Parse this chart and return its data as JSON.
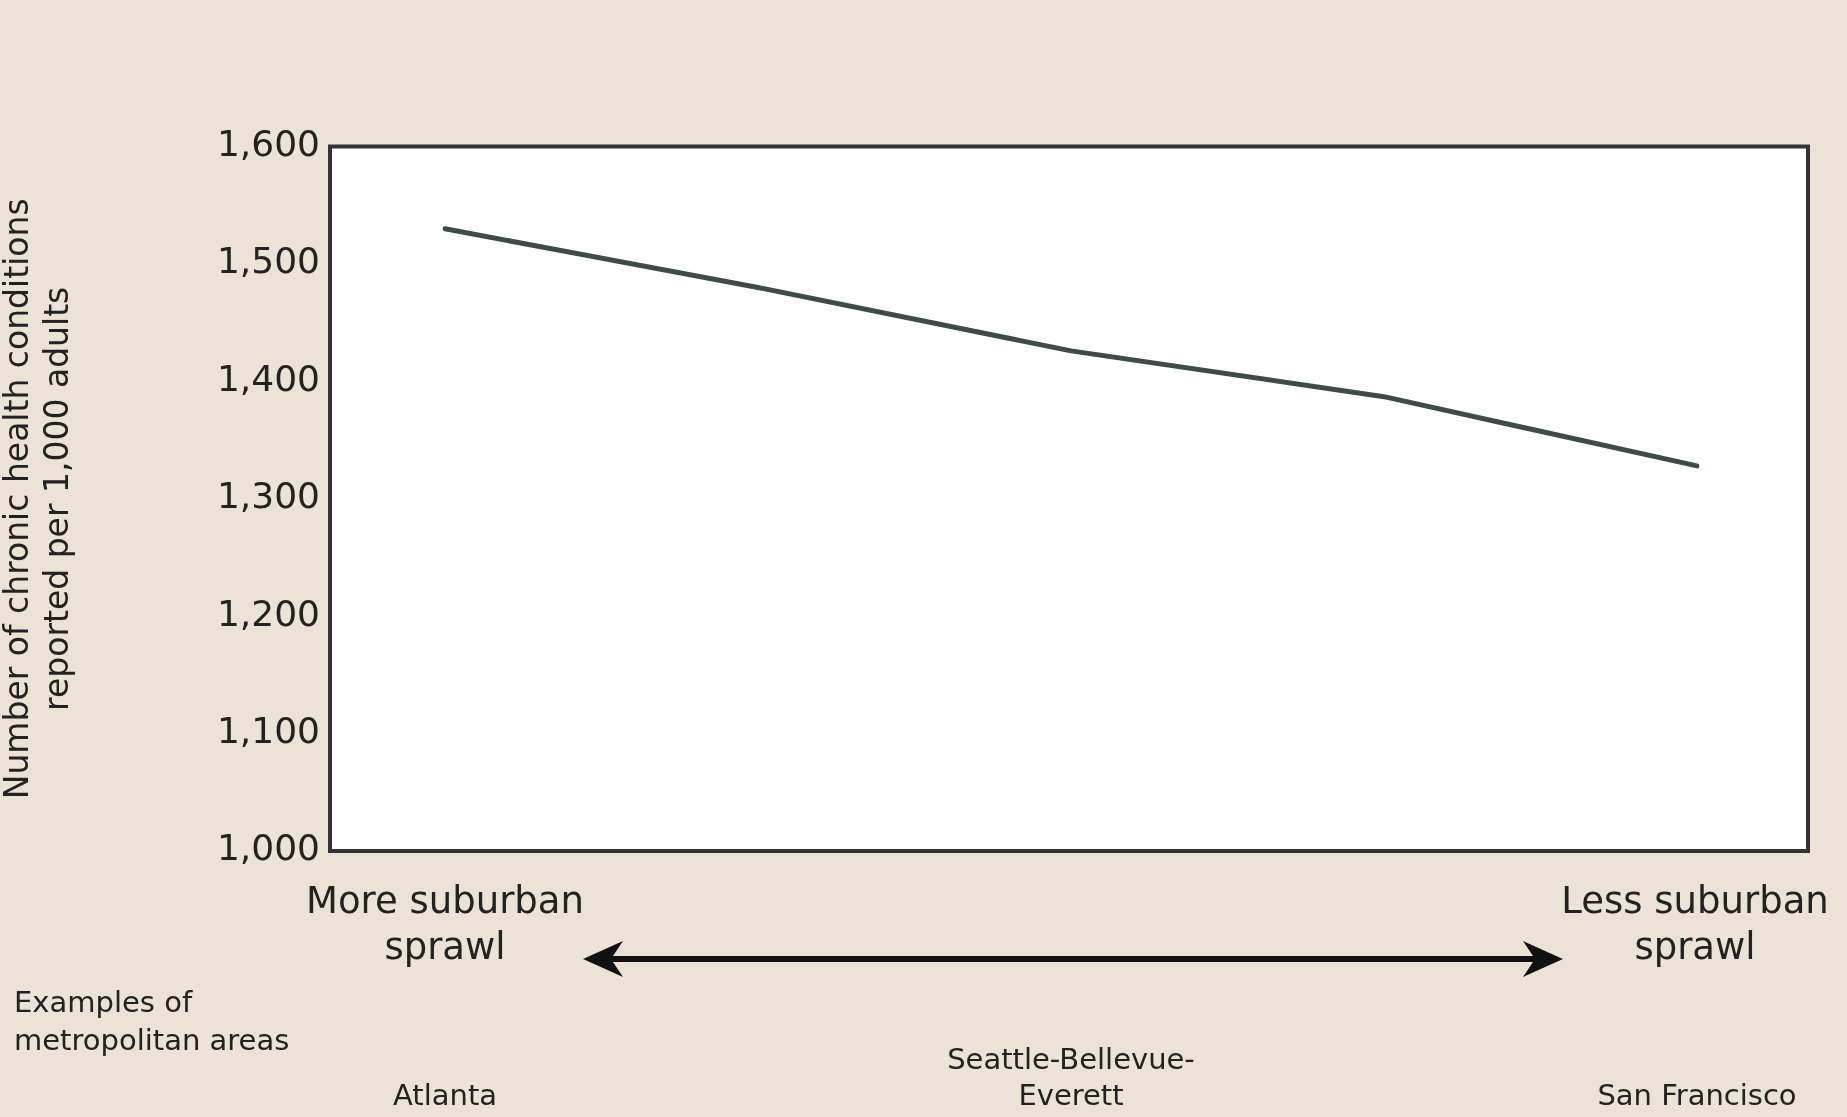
{
  "chart_data": {
    "type": "line",
    "ylabel": "Number of chronic health conditions reported per 1,000 adults",
    "categories": [
      "Atlanta",
      null,
      "Seattle-Bellevue-Everett",
      null,
      "San Francisco"
    ],
    "series": [
      {
        "color": "#3f4b47",
        "values": [
          1530,
          1480,
          1426,
          1387,
          1328
        ]
      }
    ],
    "ylim": [
      1000,
      1600
    ],
    "yticks": [
      {
        "value": 1000,
        "label": "1,000"
      },
      {
        "value": 1100,
        "label": "1,100"
      },
      {
        "value": 1200,
        "label": "1,200"
      },
      {
        "value": 1300,
        "label": "1,300"
      },
      {
        "value": 1400,
        "label": "1,400"
      },
      {
        "value": 1500,
        "label": "1,500"
      },
      {
        "value": 1600,
        "label": "1,600"
      }
    ],
    "annotations": [
      "More suburban sprawl",
      "Less suburban sprawl",
      "Examples of metropolitan areas"
    ],
    "grid": false,
    "legend": false,
    "marker": "none",
    "line_style": "solid"
  }
}
